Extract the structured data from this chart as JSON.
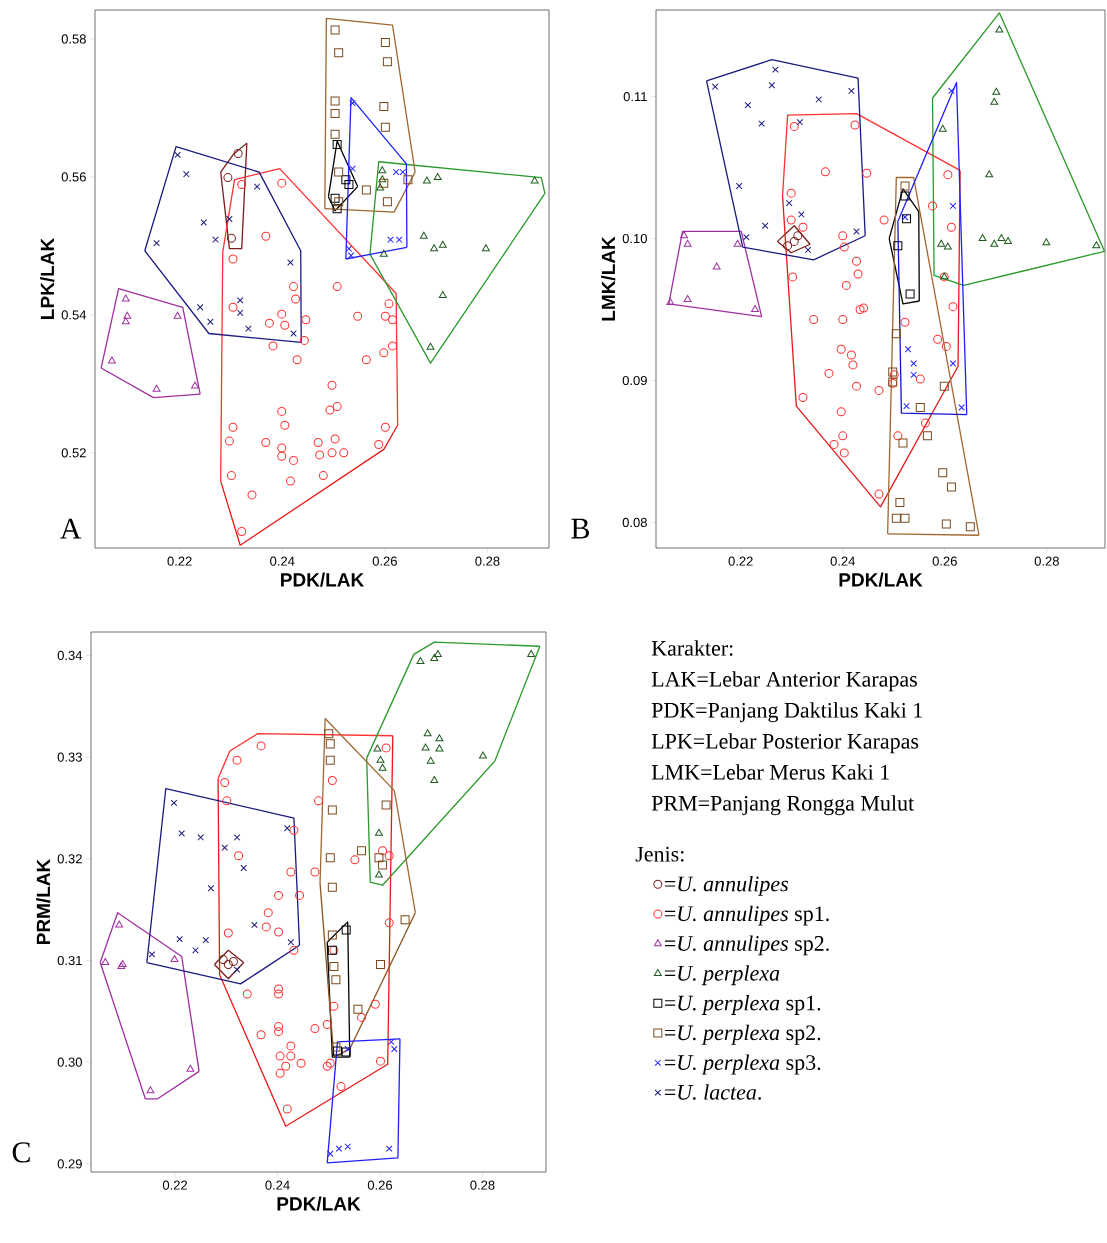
{
  "chart_data": [
    {
      "type": "scatter",
      "title": "A",
      "xlabel": "PDK/LAK",
      "ylabel": "LPK/LAK",
      "xlim": [
        0.2035,
        0.292
      ],
      "ylim": [
        0.5062,
        0.5842
      ],
      "xticks": [
        0.22,
        0.24,
        0.26,
        0.28
      ],
      "yticks": [
        0.52,
        0.54,
        0.56,
        0.58
      ],
      "series": [
        {
          "color": "#7a1c1c",
          "marker": "circle",
          "x": [
            0.2314,
            0.2294,
            0.2301
          ],
          "values": [
            0.5634,
            0.5599,
            0.5511
          ]
        },
        {
          "color": "#ff3030",
          "marker": "circle",
          "x": [
            0.2399,
            0.2321,
            0.2368,
            0.2304,
            0.2507,
            0.2422,
            0.2426,
            0.2304,
            0.2399,
            0.2375,
            0.2405,
            0.2446,
            0.2547,
            0.2608,
            0.2601,
            0.2615,
            0.2443,
            0.2382,
            0.2429,
            0.2564,
            0.2598,
            0.2615,
            0.2497,
            0.2399,
            0.2405,
            0.2493,
            0.2507,
            0.2304,
            0.2297,
            0.2368,
            0.2399,
            0.2399,
            0.2422,
            0.247,
            0.2473,
            0.2503,
            0.2497,
            0.252,
            0.2601,
            0.2588,
            0.2301,
            0.2416,
            0.248,
            0.2341,
            0.2321
          ],
          "values": [
            0.5591,
            0.5589,
            0.5514,
            0.5481,
            0.5441,
            0.5441,
            0.5423,
            0.5411,
            0.5401,
            0.5388,
            0.5385,
            0.5393,
            0.5398,
            0.5416,
            0.5398,
            0.5393,
            0.5363,
            0.5355,
            0.5335,
            0.5335,
            0.5345,
            0.5355,
            0.5298,
            0.526,
            0.524,
            0.5262,
            0.5267,
            0.5237,
            0.5217,
            0.5215,
            0.5207,
            0.5195,
            0.5189,
            0.5215,
            0.5197,
            0.522,
            0.52,
            0.52,
            0.5237,
            0.5212,
            0.5167,
            0.5159,
            0.5167,
            0.5139,
            0.5086
          ]
        },
        {
          "color": "#a030a0",
          "marker": "triangle",
          "x": [
            0.2095,
            0.2098,
            0.2095,
            0.2196,
            0.2068,
            0.2155,
            0.223
          ],
          "values": [
            0.5423,
            0.5398,
            0.539,
            0.5398,
            0.5333,
            0.5292,
            0.5297
          ]
        },
        {
          "color": "#1e5a1e",
          "marker": "triangle",
          "x": [
            0.2595,
            0.2595,
            0.2591,
            0.2682,
            0.2703,
            0.2892,
            0.2676,
            0.2696,
            0.2713,
            0.2797,
            0.2713,
            0.2689,
            0.2598
          ],
          "values": [
            0.5609,
            0.5596,
            0.5584,
            0.5594,
            0.5599,
            0.5594,
            0.5514,
            0.5496,
            0.5501,
            0.5496,
            0.5428,
            0.5353,
            0.5488
          ]
        },
        {
          "color": "#000000",
          "marker": "square",
          "x": [
            0.2507,
            0.2524,
            0.253,
            0.2503,
            0.2507
          ],
          "values": [
            0.5647,
            0.5596,
            0.5589,
            0.5569,
            0.5554
          ]
        },
        {
          "color": "#7a4a1e",
          "marker": "square",
          "x": [
            0.2503,
            0.251,
            0.2601,
            0.2605,
            0.2503,
            0.2503,
            0.2598,
            0.2601,
            0.2503,
            0.251,
            0.2564,
            0.2598,
            0.2605,
            0.2645,
            0.251
          ],
          "values": [
            0.5813,
            0.578,
            0.5795,
            0.5767,
            0.571,
            0.5692,
            0.5702,
            0.5672,
            0.5662,
            0.5607,
            0.5581,
            0.5591,
            0.5564,
            0.5596,
            0.5564
          ]
        },
        {
          "color": "#2020ff",
          "marker": "cross",
          "x": [
            0.2537,
            0.2537,
            0.2622,
            0.2635,
            0.253,
            0.2611,
            0.2628,
            0.2534
          ],
          "values": [
            0.5707,
            0.5612,
            0.5607,
            0.5607,
            0.5496,
            0.5509,
            0.5509,
            0.5486
          ]
        },
        {
          "color": "#1a1a80",
          "marker": "cross",
          "x": [
            0.2196,
            0.2213,
            0.2247,
            0.227,
            0.2297,
            0.2155,
            0.2351,
            0.2416,
            0.224,
            0.226,
            0.2318,
            0.2318,
            0.2334,
            0.2422
          ],
          "values": [
            0.5632,
            0.5604,
            0.5534,
            0.5509,
            0.5539,
            0.5504,
            0.5586,
            0.5476,
            0.5411,
            0.539,
            0.5421,
            0.5403,
            0.538,
            0.5373
          ]
        },
        {
          "type": "line",
          "color": "#7a1c1c",
          "x": [
            0.228,
            0.2304,
            0.2331
          ],
          "values": [
            0.5607,
            0.5632,
            0.5649
          ]
        },
        {
          "type": "line",
          "color": "#7a1c1c",
          "x": [
            0.228,
            0.2297,
            0.2321,
            0.2331
          ],
          "values": [
            0.5607,
            0.5496,
            0.5496,
            0.5649
          ]
        },
        {
          "type": "line",
          "color": "#ff3030",
          "x": [
            0.228,
            0.2284,
            0.2307,
            0.2395,
            0.2622,
            0.2625
          ],
          "values": [
            0.5159,
            0.5491,
            0.5596,
            0.5612,
            0.5431,
            0.524
          ]
        },
        {
          "type": "line",
          "color": "#e81818",
          "x": [
            0.228,
            0.2318,
            0.2598,
            0.2625
          ],
          "values": [
            0.5159,
            0.5066,
            0.5205,
            0.524
          ]
        },
        {
          "type": "line",
          "color": "#a030a0",
          "x": [
            0.2047,
            0.2081,
            0.2206,
            0.224
          ],
          "values": [
            0.5323,
            0.5438,
            0.5411,
            0.5285
          ]
        },
        {
          "type": "line",
          "color": "#a030a0",
          "x": [
            0.2047,
            0.2149,
            0.224
          ],
          "values": [
            0.5323,
            0.528,
            0.5285
          ]
        },
        {
          "type": "line",
          "color": "#2a9a2a",
          "x": [
            0.2571,
            0.2588,
            0.2905,
            0.2912
          ],
          "values": [
            0.5488,
            0.5622,
            0.5599,
            0.5576
          ]
        },
        {
          "type": "line",
          "color": "#2a9a2a",
          "x": [
            0.2571,
            0.2689,
            0.2912
          ],
          "values": [
            0.5488,
            0.533,
            0.5576
          ]
        },
        {
          "type": "line",
          "color": "#000000",
          "x": [
            0.249,
            0.2507,
            0.2547
          ],
          "values": [
            0.5571,
            0.5652,
            0.5586
          ]
        },
        {
          "type": "line",
          "color": "#000000",
          "x": [
            0.249,
            0.2503,
            0.2547
          ],
          "values": [
            0.5571,
            0.5551,
            0.5586
          ]
        },
        {
          "type": "line",
          "color": "#a06830",
          "x": [
            0.2483,
            0.2486,
            0.2615,
            0.2659
          ],
          "values": [
            0.5554,
            0.583,
            0.582,
            0.5607
          ]
        },
        {
          "type": "line",
          "color": "#a06830",
          "x": [
            0.2483,
            0.2618,
            0.2659
          ],
          "values": [
            0.5554,
            0.5549,
            0.5607
          ]
        },
        {
          "type": "line",
          "color": "#2020ff",
          "x": [
            0.2524,
            0.2534,
            0.2642,
            0.2643
          ],
          "values": [
            0.5481,
            0.5715,
            0.5619,
            0.5498
          ]
        },
        {
          "type": "line",
          "color": "#2020ff",
          "x": [
            0.2524,
            0.2643
          ],
          "values": [
            0.5481,
            0.5498
          ]
        },
        {
          "type": "line",
          "color": "#1a1a80",
          "x": [
            0.2132,
            0.2193,
            0.2355,
            0.2436,
            0.2437
          ],
          "values": [
            0.5493,
            0.5644,
            0.5607,
            0.5493,
            0.536
          ]
        },
        {
          "type": "line",
          "color": "#1a1a80",
          "x": [
            0.2132,
            0.2257,
            0.2437
          ],
          "values": [
            0.5493,
            0.5373,
            0.536
          ]
        }
      ]
    },
    {
      "type": "scatter",
      "title": "B",
      "xlabel": "PDK/LAK",
      "ylabel": "LMK/LAK",
      "xlim": [
        0.2034,
        0.2914
      ],
      "ylim": [
        0.0782,
        0.1161
      ],
      "xticks": [
        0.22,
        0.24,
        0.26,
        0.28
      ],
      "yticks": [
        {
          "value": 0.08,
          "label": "0.08"
        },
        {
          "value": 0.09,
          "label": "0.09"
        },
        {
          "value": 0.1,
          "label": "0.10"
        },
        {
          "value": 0.11,
          "label": "0.11"
        }
      ],
      "series": [
        {
          "color": "#7a1c1c",
          "marker": "circle",
          "x": [
            0.2305,
            0.2292,
            0.2312
          ],
          "values": [
            0.0998,
            0.0995,
            0.1002
          ]
        },
        {
          "color": "#ff3030",
          "marker": "circle",
          "x": [
            0.2305,
            0.2424,
            0.2366,
            0.2447,
            0.2299,
            0.2299,
            0.2322,
            0.24,
            0.2403,
            0.2427,
            0.243,
            0.2302,
            0.2407,
            0.2481,
            0.2441,
            0.2434,
            0.2343,
            0.24,
            0.2397,
            0.2417,
            0.242,
            0.2373,
            0.2427,
            0.2471,
            0.2322,
            0.2397,
            0.24,
            0.2383,
            0.2403,
            0.2471,
            0.2501,
            0.2498,
            0.2508,
            0.2562,
            0.2522,
            0.2586,
            0.2603,
            0.2616,
            0.2576,
            0.2613,
            0.2599,
            0.2606,
            0.2552
          ],
          "values": [
            0.1079,
            0.108,
            0.1047,
            0.1046,
            0.1032,
            0.1013,
            0.1008,
            0.1002,
            0.0994,
            0.0984,
            0.0975,
            0.0973,
            0.0967,
            0.1013,
            0.0951,
            0.095,
            0.0943,
            0.0943,
            0.0922,
            0.0918,
            0.0911,
            0.0905,
            0.0896,
            0.0893,
            0.0888,
            0.0878,
            0.0861,
            0.0855,
            0.0849,
            0.082,
            0.0904,
            0.0898,
            0.0861,
            0.087,
            0.0941,
            0.0929,
            0.0924,
            0.0952,
            0.1023,
            0.1008,
            0.0973,
            0.1045,
            0.0901
          ]
        },
        {
          "color": "#a030a0",
          "marker": "triangle",
          "x": [
            0.2089,
            0.2096,
            0.2194,
            0.2153,
            0.2096,
            0.2062,
            0.2228
          ],
          "values": [
            0.1002,
            0.0996,
            0.0996,
            0.098,
            0.0957,
            0.0955,
            0.095
          ]
        },
        {
          "color": "#1e5a1e",
          "marker": "triangle",
          "x": [
            0.2707,
            0.2701,
            0.2697,
            0.2596,
            0.2687,
            0.2593,
            0.2606,
            0.2674,
            0.2697,
            0.2711,
            0.2724,
            0.2799,
            0.2897,
            0.2599
          ],
          "values": [
            0.1147,
            0.1103,
            0.1096,
            0.1077,
            0.1045,
            0.0996,
            0.0994,
            0.1,
            0.0996,
            0.1,
            0.0998,
            0.0997,
            0.0995,
            0.0973
          ]
        },
        {
          "color": "#000000",
          "marker": "square",
          "x": [
            0.2522,
            0.2525,
            0.2508,
            0.2532
          ],
          "values": [
            0.103,
            0.1014,
            0.0995,
            0.0961
          ]
        },
        {
          "color": "#7a4a1e",
          "marker": "square",
          "x": [
            0.2522,
            0.2505,
            0.2498,
            0.2498,
            0.2599,
            0.2552,
            0.2518,
            0.2566,
            0.2596,
            0.2613,
            0.2512,
            0.2505,
            0.2522,
            0.2603,
            0.265
          ],
          "values": [
            0.1037,
            0.0933,
            0.0906,
            0.0899,
            0.0896,
            0.0881,
            0.0856,
            0.0861,
            0.0835,
            0.0825,
            0.0814,
            0.0803,
            0.0803,
            0.0799,
            0.0797
          ]
        },
        {
          "color": "#2020ff",
          "marker": "cross",
          "x": [
            0.2613,
            0.2616,
            0.2528,
            0.2539,
            0.2539,
            0.2616,
            0.2525,
            0.2633,
            0.2522
          ],
          "values": [
            0.1104,
            0.1023,
            0.0922,
            0.0912,
            0.0904,
            0.0912,
            0.0882,
            0.0881,
            0.1015
          ]
        },
        {
          "color": "#1a1a80",
          "marker": "cross",
          "x": [
            0.215,
            0.2268,
            0.2261,
            0.2214,
            0.2241,
            0.2353,
            0.2417,
            0.2316,
            0.2197,
            0.2295,
            0.2319,
            0.2248,
            0.2427,
            0.2332,
            0.2211
          ],
          "values": [
            0.1107,
            0.1119,
            0.1108,
            0.1094,
            0.1081,
            0.1098,
            0.1104,
            0.1082,
            0.1037,
            0.1025,
            0.1017,
            0.1009,
            0.1005,
            0.0992,
            0.1001
          ]
        },
        {
          "type": "line",
          "color": "#7a1c1c",
          "x": [
            0.2272,
            0.2305,
            0.2336
          ],
          "values": [
            0.0998,
            0.1009,
            0.0996
          ]
        },
        {
          "type": "line",
          "color": "#7a1c1c",
          "x": [
            0.2272,
            0.2299,
            0.2336
          ],
          "values": [
            0.0998,
            0.099,
            0.0996
          ]
        },
        {
          "type": "line",
          "color": "#ff3030",
          "x": [
            0.2282,
            0.2292,
            0.2427,
            0.263
          ],
          "values": [
            0.103,
            0.1087,
            0.1088,
            0.1048
          ]
        },
        {
          "type": "line",
          "color": "#e81818",
          "x": [
            0.2282,
            0.2309,
            0.2474,
            0.2626,
            0.263
          ],
          "values": [
            0.103,
            0.0882,
            0.0811,
            0.091,
            0.1048
          ]
        },
        {
          "type": "line",
          "color": "#a030a0",
          "x": [
            0.2059,
            0.2086,
            0.2201,
            0.2241
          ],
          "values": [
            0.0954,
            0.1005,
            0.1005,
            0.0945
          ]
        },
        {
          "type": "line",
          "color": "#a030a0",
          "x": [
            0.2059,
            0.2241
          ],
          "values": [
            0.0954,
            0.0945
          ]
        },
        {
          "type": "line",
          "color": "#2a9a2a",
          "x": [
            0.2576,
            0.2707,
            0.2913
          ],
          "values": [
            0.1099,
            0.1159,
            0.0991
          ]
        },
        {
          "type": "line",
          "color": "#2a9a2a",
          "x": [
            0.2576,
            0.2579,
            0.2637,
            0.2913
          ],
          "values": [
            0.1099,
            0.0974,
            0.0967,
            0.0991
          ]
        },
        {
          "type": "line",
          "color": "#000000",
          "x": [
            0.2491,
            0.2518,
            0.2549,
            0.255
          ],
          "values": [
            0.1,
            0.1035,
            0.1019,
            0.0956
          ]
        },
        {
          "type": "line",
          "color": "#000000",
          "x": [
            0.2491,
            0.2518,
            0.255
          ],
          "values": [
            0.1,
            0.0954,
            0.0956
          ]
        },
        {
          "type": "line",
          "color": "#a06830",
          "x": [
            0.2488,
            0.2505,
            0.2539,
            0.2667
          ],
          "values": [
            0.0792,
            0.1043,
            0.1043,
            0.0791
          ]
        },
        {
          "type": "line",
          "color": "#a06830",
          "x": [
            0.2488,
            0.2667
          ],
          "values": [
            0.0792,
            0.0791
          ]
        },
        {
          "type": "line",
          "color": "#2020ff",
          "x": [
            0.2508,
            0.2623,
            0.2643
          ],
          "values": [
            0.1012,
            0.111,
            0.0876
          ]
        },
        {
          "type": "line",
          "color": "#1414d0",
          "x": [
            0.2508,
            0.2515,
            0.2643
          ],
          "values": [
            0.1012,
            0.0877,
            0.0876
          ]
        },
        {
          "type": "line",
          "color": "#1a1a80",
          "x": [
            0.2133,
            0.2261,
            0.243,
            0.2444
          ],
          "values": [
            0.1111,
            0.1126,
            0.1113,
            0.1002
          ]
        },
        {
          "type": "line",
          "color": "#1a1a80",
          "x": [
            0.2133,
            0.2204,
            0.2343,
            0.2444
          ],
          "values": [
            0.1111,
            0.0994,
            0.0985,
            0.1002
          ]
        }
      ]
    },
    {
      "type": "scatter",
      "title": "C",
      "xlabel": "PDK/LAK",
      "ylabel": "PRM/LAK",
      "xlim": [
        0.2036,
        0.2924
      ],
      "ylim": [
        0.2892,
        0.3423
      ],
      "xticks": [
        0.22,
        0.24,
        0.26,
        0.28
      ],
      "yticks": [
        0.29,
        {
          "value": 0.3,
          "label": "0.30"
        },
        0.31,
        0.32,
        0.33,
        0.34
      ],
      "legend": "right",
      "legend_title": "Jenis:",
      "series": [
        {
          "name": "=*U. annulipes*",
          "color": "#7a1c1c",
          "marker": "circle",
          "x": [
            0.2304,
            0.2294,
            0.2314
          ],
          "values": [
            0.3096,
            0.3101,
            0.3099
          ]
        },
        {
          "name": "=*U. annulipes* sp1.",
          "color": "#ff3030",
          "marker": "circle",
          "x": [
            0.2368,
            0.2321,
            0.2297,
            0.2301,
            0.2324,
            0.2426,
            0.2402,
            0.2382,
            0.2378,
            0.2402,
            0.2304,
            0.2443,
            0.2432,
            0.2341,
            0.2402,
            0.2402,
            0.2368,
            0.2402,
            0.2402,
            0.2426,
            0.2426,
            0.2405,
            0.2416,
            0.2405,
            0.2446,
            0.2419,
            0.2473,
            0.2497,
            0.2497,
            0.2503,
            0.2524,
            0.2507,
            0.248,
            0.2473,
            0.2551,
            0.251,
            0.251,
            0.2564,
            0.2591,
            0.2601,
            0.2618,
            0.2612,
            0.2605,
            0.2618,
            0.2432
          ],
          "values": [
            0.3311,
            0.3297,
            0.3275,
            0.3257,
            0.3203,
            0.3187,
            0.3164,
            0.3147,
            0.3133,
            0.3128,
            0.3127,
            0.3164,
            0.311,
            0.3067,
            0.3072,
            0.3067,
            0.3027,
            0.3035,
            0.303,
            0.3016,
            0.3006,
            0.3006,
            0.2996,
            0.2989,
            0.2999,
            0.2954,
            0.3033,
            0.3037,
            0.2996,
            0.2999,
            0.2976,
            0.3277,
            0.3257,
            0.3187,
            0.3199,
            0.311,
            0.3055,
            0.3044,
            0.3057,
            0.3001,
            0.3137,
            0.3309,
            0.3208,
            0.3203,
            0.3228
          ]
        },
        {
          "name": "=*U. annulipes* sp2.",
          "color": "#a030a0",
          "marker": "triangle",
          "x": [
            0.2091,
            0.2064,
            0.2095,
            0.2098,
            0.2199,
            0.223,
            0.2152
          ],
          "values": [
            0.3135,
            0.3098,
            0.3094,
            0.3096,
            0.3101,
            0.2993,
            0.2972
          ]
        },
        {
          "name": "=*U. perplexa*",
          "color": "#1e5a1e",
          "marker": "triangle",
          "x": [
            0.2595,
            0.2601,
            0.2605,
            0.2706,
            0.2713,
            0.2679,
            0.2895,
            0.2693,
            0.2716,
            0.2689,
            0.2716,
            0.2699,
            0.2801,
            0.2706,
            0.2598,
            0.2598
          ],
          "values": [
            0.3308,
            0.3297,
            0.3289,
            0.3397,
            0.3401,
            0.3394,
            0.3401,
            0.3323,
            0.3318,
            0.3309,
            0.3308,
            0.3296,
            0.3301,
            0.3277,
            0.3225,
            0.3184
          ]
        },
        {
          "name": "=*U. perplexa* sp1.",
          "color": "#000000",
          "marker": "square",
          "x": [
            0.2534,
            0.2507,
            0.2517,
            0.2534
          ],
          "values": [
            0.313,
            0.311,
            0.3011,
            0.301
          ]
        },
        {
          "name": "=*U. perplexa* sp2.",
          "color": "#7a4a1e",
          "marker": "square",
          "x": [
            0.25,
            0.2503,
            0.2503,
            0.2507,
            0.2503,
            0.2507,
            0.2612,
            0.2564,
            0.2598,
            0.2605,
            0.2649,
            0.251,
            0.2514,
            0.2601,
            0.2557,
            0.2514,
            0.2507
          ],
          "values": [
            0.3323,
            0.3313,
            0.3297,
            0.3248,
            0.3201,
            0.3172,
            0.3253,
            0.3208,
            0.3201,
            0.3194,
            0.314,
            0.3094,
            0.3081,
            0.3096,
            0.3052,
            0.3015,
            0.3125
          ]
        },
        {
          "name": "=*U. perplexa* sp3.",
          "color": "#2020ff",
          "marker": "cross",
          "x": [
            0.2537,
            0.2622,
            0.2628,
            0.2503,
            0.252,
            0.2537,
            0.2618
          ],
          "values": [
            0.3013,
            0.302,
            0.3013,
            0.291,
            0.2915,
            0.2917,
            0.2915
          ]
        },
        {
          "name": "=*U. lactea*.",
          "color": "#1a1a80",
          "marker": "cross",
          "x": [
            0.2198,
            0.2213,
            0.225,
            0.2297,
            0.2321,
            0.2334,
            0.227,
            0.2419,
            0.2355,
            0.2426,
            0.2209,
            0.224,
            0.226,
            0.2155,
            0.2321
          ],
          "values": [
            0.3255,
            0.3225,
            0.3221,
            0.3211,
            0.3221,
            0.3191,
            0.3171,
            0.323,
            0.3135,
            0.3118,
            0.3121,
            0.311,
            0.312,
            0.3106,
            0.3091
          ]
        },
        {
          "type": "line",
          "color": "#7a1c1c",
          "x": [
            0.2277,
            0.2304,
            0.2334
          ],
          "values": [
            0.3096,
            0.311,
            0.3098
          ]
        },
        {
          "type": "line",
          "color": "#7a1c1c",
          "x": [
            0.2277,
            0.2304,
            0.2334
          ],
          "values": [
            0.3096,
            0.3082,
            0.3098
          ]
        },
        {
          "type": "line",
          "color": "#ff3030",
          "x": [
            0.2284,
            0.2307,
            0.2361,
            0.2625
          ],
          "values": [
            0.3279,
            0.3306,
            0.3323,
            0.3321
          ]
        },
        {
          "type": "line",
          "color": "#e81818",
          "x": [
            0.2284,
            0.2287,
            0.2416,
            0.2615,
            0.2625
          ],
          "values": [
            0.3279,
            0.3086,
            0.2937,
            0.2998,
            0.3321
          ]
        },
        {
          "type": "line",
          "color": "#a030a0",
          "x": [
            0.2054,
            0.2088,
            0.2213,
            0.2247
          ],
          "values": [
            0.3098,
            0.3147,
            0.3104,
            0.2991
          ]
        },
        {
          "type": "line",
          "color": "#a030a0",
          "x": [
            0.2054,
            0.2142,
            0.2166,
            0.2247
          ],
          "values": [
            0.3098,
            0.2964,
            0.2964,
            0.2991
          ]
        },
        {
          "type": "line",
          "color": "#2a9a2a",
          "x": [
            0.2574,
            0.2666,
            0.2706,
            0.2912
          ],
          "values": [
            0.3299,
            0.3401,
            0.3413,
            0.3409
          ]
        },
        {
          "type": "line",
          "color": "#2a9a2a",
          "x": [
            0.2574,
            0.2581,
            0.2605,
            0.2824,
            0.2912
          ],
          "values": [
            0.3299,
            0.3177,
            0.3174,
            0.3296,
            0.3409
          ]
        },
        {
          "type": "line",
          "color": "#000000",
          "x": [
            0.2497,
            0.2537,
            0.2541
          ],
          "values": [
            0.3118,
            0.3138,
            0.3005
          ]
        },
        {
          "type": "line",
          "color": "#000000",
          "x": [
            0.2497,
            0.2507,
            0.2541
          ],
          "values": [
            0.3118,
            0.3005,
            0.3005
          ]
        },
        {
          "type": "line",
          "color": "#a06830",
          "x": [
            0.2483,
            0.2493,
            0.2628,
            0.2669
          ],
          "values": [
            0.3176,
            0.3338,
            0.3267,
            0.3147
          ]
        },
        {
          "type": "line",
          "color": "#8a5420",
          "x": [
            0.2483,
            0.251,
            0.2541,
            0.2669
          ],
          "values": [
            0.3176,
            0.3005,
            0.3013,
            0.3147
          ]
        },
        {
          "type": "line",
          "color": "#2020ff",
          "x": [
            0.2497,
            0.2517,
            0.2639
          ],
          "values": [
            0.2901,
            0.302,
            0.3023
          ]
        },
        {
          "type": "line",
          "color": "#2020ff",
          "x": [
            0.2497,
            0.2635,
            0.2639
          ],
          "values": [
            0.2901,
            0.2906,
            0.3023
          ]
        },
        {
          "type": "line",
          "color": "#1a1a80",
          "x": [
            0.2145,
            0.2182,
            0.2432,
            0.2443
          ],
          "values": [
            0.3098,
            0.3269,
            0.324,
            0.3115
          ]
        },
        {
          "type": "line",
          "color": "#1a1a80",
          "x": [
            0.2145,
            0.2328,
            0.2443
          ],
          "values": [
            0.3098,
            0.3077,
            0.3115
          ]
        }
      ]
    },
    {
      "type": "other",
      "annotations": [
        "Karakter:",
        "LAK=Lebar Anterior Karapas",
        "PDK=Panjang Daktilus Kaki 1",
        "LPK=Lebar Posterior Karapas",
        "LMK=Lebar Merus Kaki 1",
        "PRM=Panjang Rongga Mulut"
      ]
    }
  ]
}
